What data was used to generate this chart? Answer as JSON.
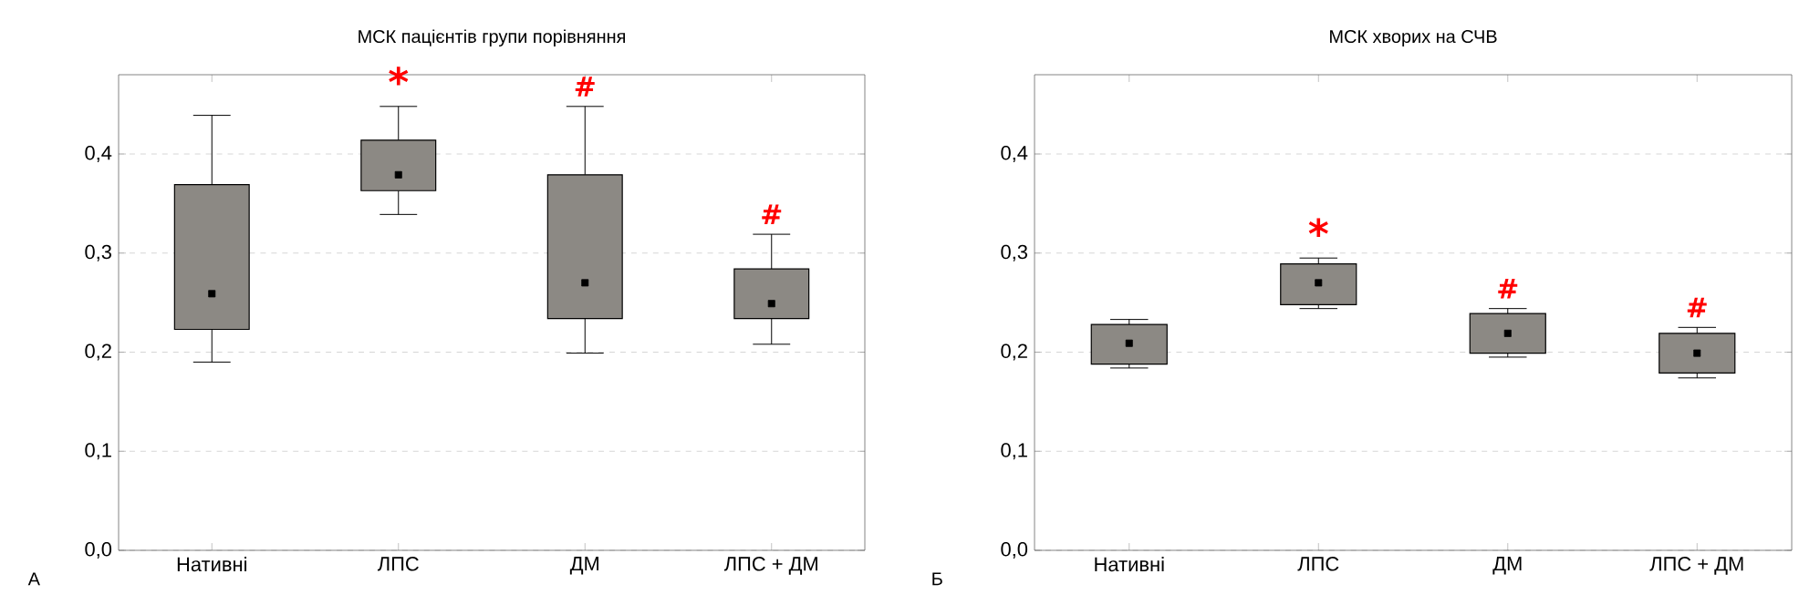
{
  "chart_data": [
    {
      "type": "box",
      "title": "МСК пацієнтів групи порівняння",
      "categories": [
        "Нативні",
        "ЛПС",
        "ДМ",
        "ЛПС + ДМ"
      ],
      "series": [
        {
          "color": "#8c8984",
          "boxes": [
            {
              "low": 0.19,
              "q1": 0.223,
              "median": 0.259,
              "q3": 0.369,
              "high": 0.439
            },
            {
              "low": 0.339,
              "q1": 0.363,
              "median": 0.379,
              "q3": 0.414,
              "high": 0.448
            },
            {
              "low": 0.199,
              "q1": 0.234,
              "median": 0.27,
              "q3": 0.379,
              "high": 0.448
            },
            {
              "low": 0.208,
              "q1": 0.234,
              "median": 0.249,
              "q3": 0.284,
              "high": 0.319
            }
          ]
        }
      ],
      "ylim": [
        0,
        0.48
      ],
      "yticks": [
        {
          "value": 0,
          "label": "0,0"
        },
        {
          "value": 0.1,
          "label": "0,1"
        },
        {
          "value": 0.2,
          "label": "0,2"
        },
        {
          "value": 0.3,
          "label": "0,3"
        },
        {
          "value": 0.4,
          "label": "0,4"
        }
      ],
      "grid": "y",
      "annotations": [
        "*",
        "#",
        "#",
        "А"
      ]
    },
    {
      "type": "box",
      "title": "МСК хворих на СЧВ",
      "categories": [
        "Нативні",
        "ЛПС",
        "ДМ",
        "ЛПС + ДМ"
      ],
      "series": [
        {
          "color": "#8c8984",
          "boxes": [
            {
              "low": 0.184,
              "q1": 0.188,
              "median": 0.209,
              "q3": 0.228,
              "high": 0.233
            },
            {
              "low": 0.244,
              "q1": 0.248,
              "median": 0.27,
              "q3": 0.289,
              "high": 0.295
            },
            {
              "low": 0.195,
              "q1": 0.199,
              "median": 0.219,
              "q3": 0.239,
              "high": 0.244
            },
            {
              "low": 0.174,
              "q1": 0.179,
              "median": 0.199,
              "q3": 0.219,
              "high": 0.225
            }
          ]
        }
      ],
      "ylim": [
        0,
        0.48
      ],
      "yticks": [
        {
          "value": 0,
          "label": "0,0"
        },
        {
          "value": 0.1,
          "label": "0,1"
        },
        {
          "value": 0.2,
          "label": "0,2"
        },
        {
          "value": 0.3,
          "label": "0,3"
        },
        {
          "value": 0.4,
          "label": "0,4"
        }
      ],
      "grid": "y",
      "annotations": [
        "*",
        "#",
        "#",
        "Б"
      ]
    }
  ]
}
